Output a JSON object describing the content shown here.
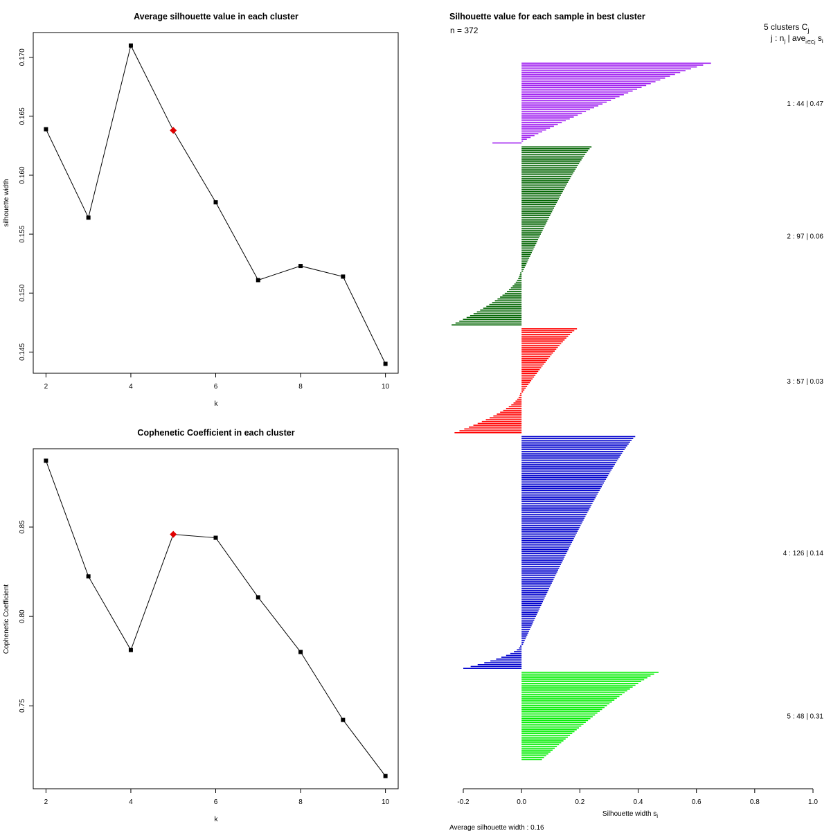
{
  "chart_data": [
    {
      "type": "line",
      "title": "Average silhouette value in each cluster",
      "xlabel": "k",
      "ylabel": "silhouette width",
      "x": [
        2,
        3,
        4,
        5,
        6,
        7,
        8,
        9,
        10
      ],
      "y": [
        0.1639,
        0.1564,
        0.171,
        0.1638,
        0.1577,
        0.1511,
        0.1523,
        0.1514,
        0.144
      ],
      "highlight_index": 3,
      "highlight_color": "#e00000",
      "xlim": [
        1.7,
        10.3
      ],
      "ylim": [
        0.1432,
        0.1721
      ],
      "xticks": [
        "2",
        "4",
        "6",
        "8",
        "10"
      ],
      "yticks": [
        "0.145",
        "0.150",
        "0.155",
        "0.160",
        "0.165",
        "0.170"
      ]
    },
    {
      "type": "line",
      "title": "Cophenetic Coefficient in each cluster",
      "xlabel": "k",
      "ylabel": "Cophenetic Coefficient",
      "x": [
        2,
        3,
        4,
        5,
        6,
        7,
        8,
        9,
        10
      ],
      "y": [
        0.8871,
        0.8224,
        0.7812,
        0.8459,
        0.844,
        0.8107,
        0.7801,
        0.7421,
        0.7107
      ],
      "highlight_index": 3,
      "highlight_color": "#e00000",
      "xlim": [
        1.7,
        10.3
      ],
      "ylim": [
        0.7036,
        0.8938
      ],
      "xticks": [
        "2",
        "4",
        "6",
        "8",
        "10"
      ],
      "yticks": [
        "0.75",
        "0.80",
        "0.85"
      ]
    },
    {
      "type": "bar",
      "orientation": "horizontal",
      "title": "Silhouette value for each sample in best cluster",
      "n_label": "n = 372",
      "header": "5 clusters  C",
      "header_sub": "j",
      "header2": "j :  n",
      "header2_sub": "j",
      "header2_tail": " | ave",
      "header2_tail_sub": "i∈Cj",
      "header2_end": " s",
      "header2_end_sub": "i",
      "xlabel": "Silhouette width  s",
      "xlabel_sub": "i",
      "xlim": [
        -0.2,
        1.0
      ],
      "xticks": [
        "-0.2",
        "0.0",
        "0.2",
        "0.4",
        "0.6",
        "0.8",
        "1.0"
      ],
      "footer": "Average silhouette width :  0.16",
      "clusters": [
        {
          "id": 1,
          "label": "1 :   44  |  0.47",
          "n": 44,
          "color": "#a020f0",
          "max": 0.65,
          "min": -0.1,
          "n_neg": 1
        },
        {
          "id": 2,
          "label": "2 :   97  |  0.06",
          "n": 97,
          "color": "#006400",
          "max": 0.24,
          "min": -0.24,
          "n_neg": 29
        },
        {
          "id": 3,
          "label": "3 :   57  |  0.03",
          "n": 57,
          "color": "#ff0000",
          "max": 0.19,
          "min": -0.23,
          "n_neg": 22
        },
        {
          "id": 4,
          "label": "4 :   126  |  0.14",
          "n": 126,
          "color": "#0000cd",
          "max": 0.39,
          "min": -0.2,
          "n_neg": 13
        },
        {
          "id": 5,
          "label": "5 :   48  |  0.31",
          "n": 48,
          "color": "#00ee00",
          "max": 0.47,
          "min": 0.07,
          "n_neg": 0
        }
      ]
    }
  ]
}
